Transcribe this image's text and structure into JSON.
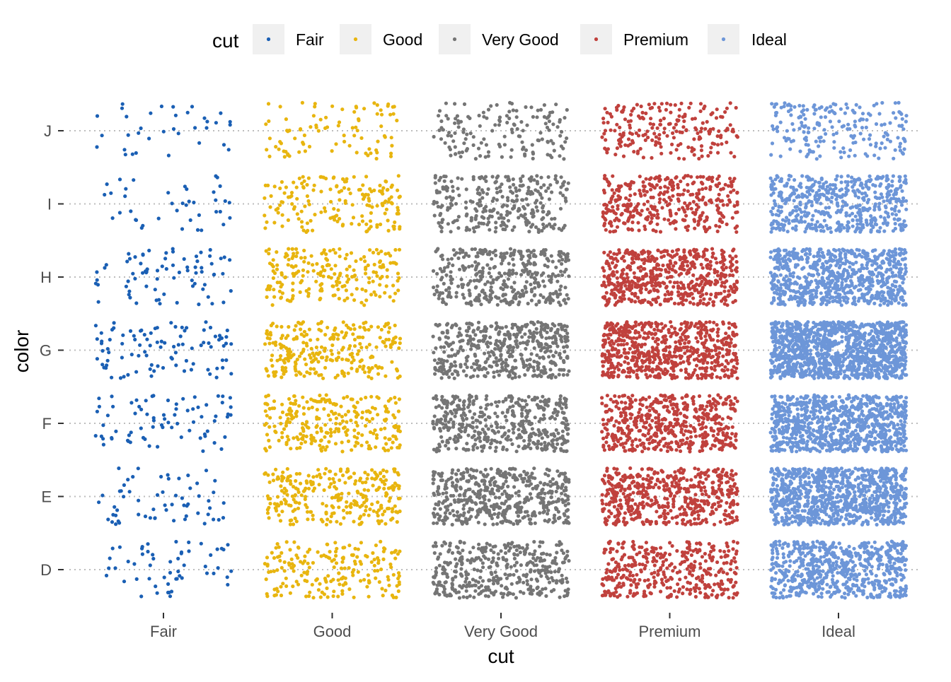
{
  "chart_data": {
    "type": "scatter",
    "title": "",
    "xlabel": "cut",
    "ylabel": "color",
    "x_categories": [
      "Fair",
      "Good",
      "Very Good",
      "Premium",
      "Ideal"
    ],
    "y_categories": [
      "D",
      "E",
      "F",
      "G",
      "H",
      "I",
      "J"
    ],
    "jitter": "points jittered within each cut × color cell",
    "grid": "horizontal dotted gridlines at each color level",
    "legend": {
      "title": "cut",
      "position": "top",
      "entries": [
        "Fair",
        "Good",
        "Very Good",
        "Premium",
        "Ideal"
      ]
    },
    "series": [
      {
        "name": "Fair",
        "color": "#1a5fb4",
        "counts": {
          "D": 55,
          "E": 60,
          "F": 75,
          "G": 95,
          "H": 75,
          "I": 40,
          "J": 35
        }
      },
      {
        "name": "Good",
        "color": "#e8b50f",
        "counts": {
          "D": 200,
          "E": 280,
          "F": 260,
          "G": 265,
          "H": 210,
          "I": 170,
          "J": 90
        }
      },
      {
        "name": "Very Good",
        "color": "#757575",
        "counts": {
          "D": 390,
          "E": 500,
          "F": 440,
          "G": 470,
          "H": 390,
          "I": 300,
          "J": 150
        }
      },
      {
        "name": "Premium",
        "color": "#c0413d",
        "counts": {
          "D": 380,
          "E": 520,
          "F": 520,
          "G": 650,
          "H": 560,
          "I": 370,
          "J": 210
        }
      },
      {
        "name": "Ideal",
        "color": "#6d96d8",
        "counts": {
          "D": 650,
          "E": 950,
          "F": 900,
          "G": 1200,
          "H": 770,
          "I": 530,
          "J": 200
        }
      }
    ]
  }
}
